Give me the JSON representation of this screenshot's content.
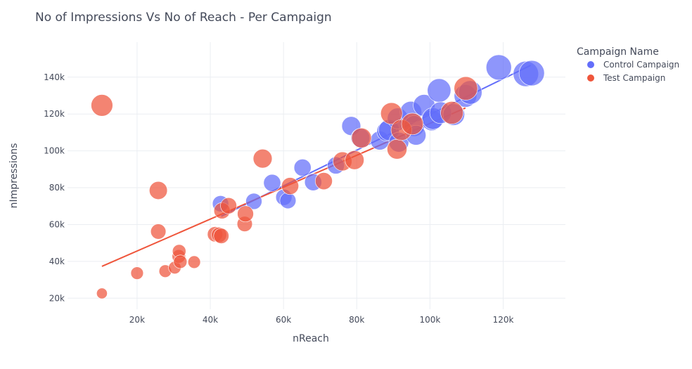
{
  "colors": {
    "control": "#636efa",
    "test": "#ef553b"
  },
  "chart_data": {
    "type": "scatter",
    "title": "No of Impressions Vs No of Reach - Per Campaign",
    "xlabel": "nReach",
    "ylabel": "nImpressions",
    "xlim": [
      1000,
      137000
    ],
    "ylim": [
      14000,
      159000
    ],
    "x_ticks": [
      20000,
      40000,
      60000,
      80000,
      100000,
      120000
    ],
    "x_tick_labels": [
      "20k",
      "40k",
      "60k",
      "80k",
      "100k",
      "120k"
    ],
    "y_ticks": [
      20000,
      40000,
      60000,
      80000,
      100000,
      120000,
      140000
    ],
    "y_tick_labels": [
      "20k",
      "40k",
      "60k",
      "80k",
      "100k",
      "120k",
      "140k"
    ],
    "grid": true,
    "legend": {
      "title": "Campaign Name",
      "placement": "top-right"
    },
    "size_note": "marker size scales with a third value",
    "series": [
      {
        "name": "Control Campaign",
        "color_key": "control",
        "points": [
          [
            42800,
            71300,
            1.0
          ],
          [
            51900,
            72600,
            1.0
          ],
          [
            56900,
            82600,
            1.1
          ],
          [
            60100,
            74800,
            1.0
          ],
          [
            61200,
            73000,
            1.0
          ],
          [
            65200,
            90900,
            1.1
          ],
          [
            68100,
            83000,
            1.1
          ],
          [
            74300,
            92100,
            1.1
          ],
          [
            78500,
            113500,
            1.3
          ],
          [
            81000,
            107000,
            1.3
          ],
          [
            86300,
            105600,
            1.3
          ],
          [
            88200,
            110600,
            1.4
          ],
          [
            88800,
            111300,
            1.5
          ],
          [
            91200,
            117600,
            1.5
          ],
          [
            91500,
            104700,
            1.4
          ],
          [
            94800,
            121000,
            1.6
          ],
          [
            95700,
            113500,
            1.5
          ],
          [
            96200,
            108500,
            1.4
          ],
          [
            98400,
            124700,
            1.6
          ],
          [
            100500,
            116600,
            1.5
          ],
          [
            100800,
            117500,
            1.6
          ],
          [
            102500,
            132800,
            1.8
          ],
          [
            102900,
            120700,
            1.6
          ],
          [
            106500,
            119700,
            1.6
          ],
          [
            109700,
            129800,
            1.7
          ],
          [
            111000,
            131700,
            1.8
          ],
          [
            118800,
            145300,
            2.0
          ],
          [
            126200,
            141800,
            2.0
          ],
          [
            127800,
            142200,
            2.0
          ]
        ]
      },
      {
        "name": "Test Campaign",
        "color_key": "test",
        "points": [
          [
            10400,
            22600,
            0.4
          ],
          [
            10400,
            124700,
            1.6
          ],
          [
            20000,
            33600,
            0.6
          ],
          [
            25800,
            78500,
            1.2
          ],
          [
            25800,
            56200,
            0.9
          ],
          [
            27700,
            34700,
            0.6
          ],
          [
            30300,
            36600,
            0.6
          ],
          [
            31400,
            42700,
            0.7
          ],
          [
            31500,
            45500,
            0.7
          ],
          [
            31800,
            39800,
            0.7
          ],
          [
            35600,
            39600,
            0.6
          ],
          [
            41300,
            54700,
            0.9
          ],
          [
            42400,
            54400,
            0.9
          ],
          [
            43000,
            53800,
            0.9
          ],
          [
            43200,
            67500,
            1.0
          ],
          [
            45000,
            70200,
            1.0
          ],
          [
            49400,
            60300,
            0.9
          ],
          [
            49600,
            65800,
            1.0
          ],
          [
            54300,
            95800,
            1.3
          ],
          [
            61800,
            80900,
            1.1
          ],
          [
            71000,
            83600,
            1.1
          ],
          [
            76100,
            94300,
            1.3
          ],
          [
            79400,
            95000,
            1.3
          ],
          [
            81300,
            107000,
            1.4
          ],
          [
            89500,
            120300,
            1.6
          ],
          [
            91000,
            100900,
            1.4
          ],
          [
            92200,
            111300,
            1.5
          ],
          [
            95200,
            114600,
            1.6
          ],
          [
            106000,
            120700,
            1.7
          ],
          [
            109800,
            133900,
            1.8
          ]
        ]
      }
    ],
    "trendlines": [
      {
        "series": "Control Campaign",
        "color_key": "control",
        "x": [
          43000,
          127500
        ],
        "y": [
          64500,
          146400
        ]
      },
      {
        "series": "Test Campaign",
        "color_key": "test",
        "x": [
          10400,
          109700
        ],
        "y": [
          37300,
          123300
        ]
      }
    ]
  }
}
